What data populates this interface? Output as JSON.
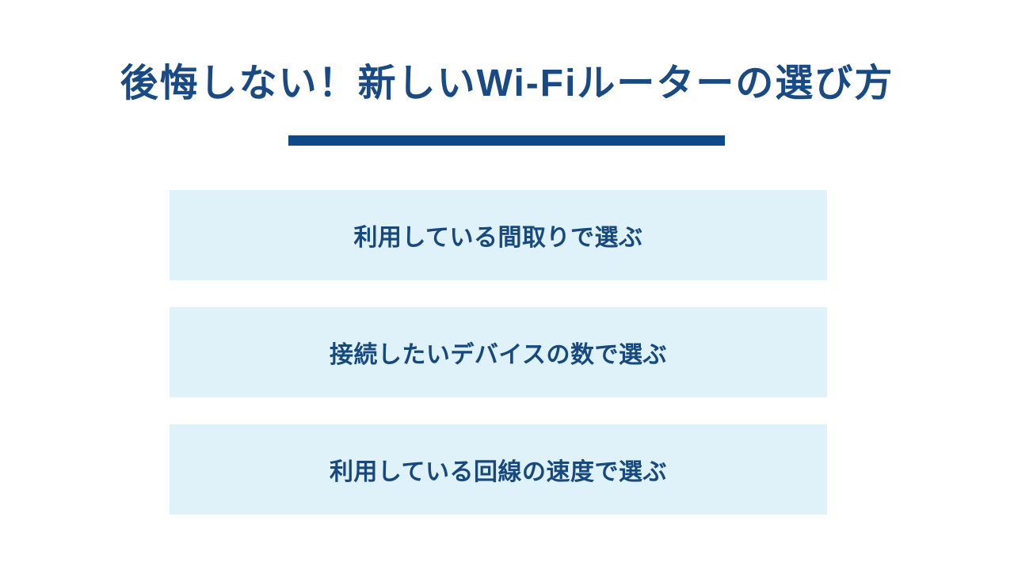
{
  "slide": {
    "title": "後悔しない！新しいWi-Fiルーターの選び方",
    "options": [
      {
        "label": "利用している間取りで選ぶ"
      },
      {
        "label": "接続したいデバイスの数で選ぶ"
      },
      {
        "label": "利用している回線の速度で選ぶ"
      }
    ],
    "colors": {
      "title_text": "#1A4A84",
      "underline_bar": "#0D4A87",
      "box_background": "#DFF1F9",
      "box_text": "#17497E",
      "page_background": "#FFFFFF"
    }
  }
}
